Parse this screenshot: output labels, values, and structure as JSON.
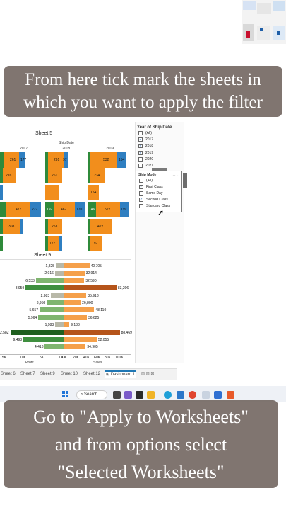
{
  "overlay": {
    "top_text_line1": "From here tick mark the sheets in",
    "top_text_line2": "which you want to apply the filter",
    "bottom_text_line1": "Go to \"Apply to Worksheets\"",
    "bottom_text_line2": "and from options select",
    "bottom_text_line3": "\"Selected Worksheets\""
  },
  "sheet5": {
    "title": "Sheet 5",
    "col_header": "Ship Date",
    "years": [
      "2017",
      "2018",
      "2019"
    ],
    "rows": [
      [
        "261",
        "177",
        "291",
        "97",
        "532",
        "154"
      ],
      [
        "216",
        "261",
        "234"
      ],
      [
        "154"
      ],
      [
        "477",
        "227",
        "192",
        "462",
        "170",
        "146",
        "522",
        "199"
      ],
      [
        "308",
        "253",
        "422"
      ],
      [
        "177",
        "192"
      ]
    ]
  },
  "sheet9": {
    "title": "Sheet 9",
    "profit_labels": [
      "1,825",
      "2,016",
      "6,533",
      "8,959",
      "2,983",
      "3,958",
      "5,657",
      "5,964",
      "1,983",
      "12,582",
      "9,498",
      "4,418"
    ],
    "sales_labels": [
      "40,705",
      "32,914",
      "32,590",
      "83,206",
      "35,918",
      "26,800",
      "48,110",
      "36,625",
      "9,138",
      "88,469",
      "52,055",
      "34,905"
    ],
    "profit_ticks": [
      "15K",
      "10K",
      "5K",
      "0K"
    ],
    "sales_ticks": [
      "0K",
      "20K",
      "40K",
      "60K",
      "80K",
      "100K"
    ],
    "profit_axis": "Profit",
    "sales_axis": "Sales"
  },
  "filter_year": {
    "title": "Year of Ship Date",
    "items": [
      {
        "label": "(All)",
        "checked": false
      },
      {
        "label": "2017",
        "checked": true
      },
      {
        "label": "2018",
        "checked": true
      },
      {
        "label": "2019",
        "checked": true
      },
      {
        "label": "2020",
        "checked": false
      },
      {
        "label": "2021",
        "checked": false
      }
    ]
  },
  "filter_ship": {
    "title": "Ship Mode",
    "items": [
      {
        "label": "(All)",
        "checked": false
      },
      {
        "label": "First Class",
        "checked": true
      },
      {
        "label": "Same Day",
        "checked": false
      },
      {
        "label": "Second Class",
        "checked": true
      },
      {
        "label": "Standard Class",
        "checked": false
      }
    ]
  },
  "tabs": [
    "Sheet 6",
    "Sheet 7",
    "Sheet 9",
    "Sheet 10",
    "Sheet 12",
    "Dashboard 1"
  ],
  "taskbar": {
    "search_label": "Search"
  },
  "colors": {
    "green": "#2f8a3a",
    "orange": "#f28e1c",
    "blue": "#2f7fc1",
    "profit_dark": "#1f5f1f",
    "sales_dark": "#b5541a"
  }
}
